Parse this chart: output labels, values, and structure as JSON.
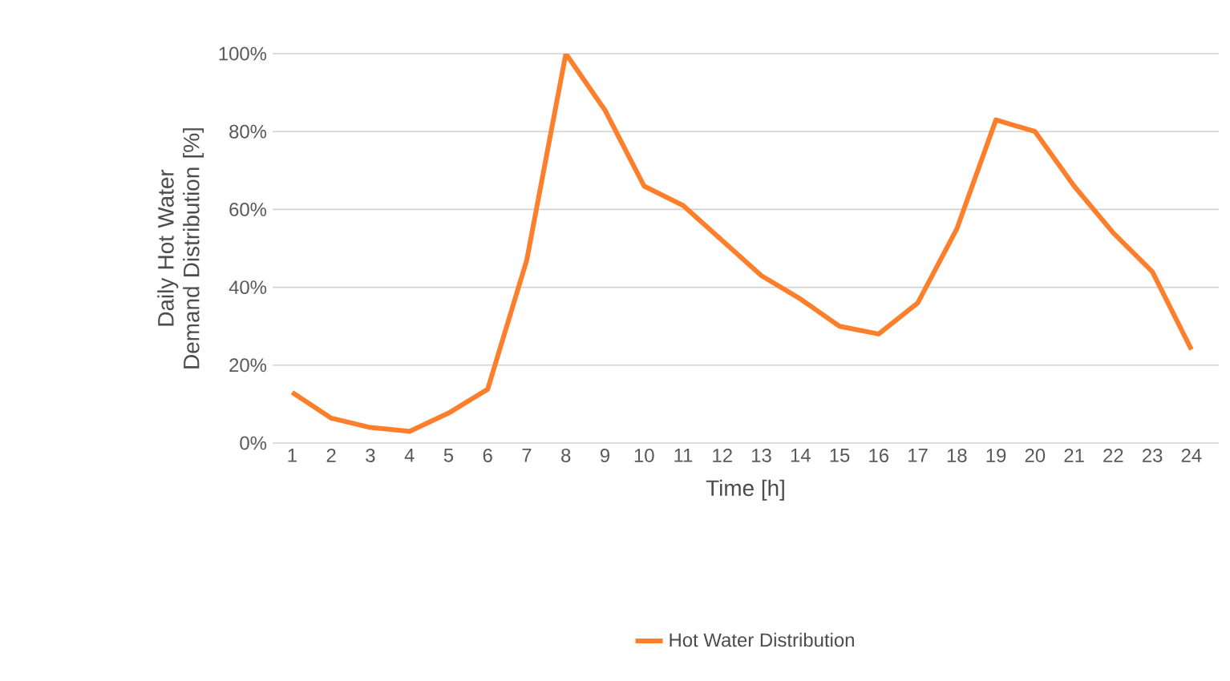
{
  "chart_data": {
    "type": "line",
    "xlabel": "Time [h]",
    "ylabel": "Daily Hot Water Demand Distribution [%]",
    "categories": [
      "1",
      "2",
      "3",
      "4",
      "5",
      "6",
      "7",
      "8",
      "9",
      "10",
      "11",
      "12",
      "13",
      "14",
      "15",
      "16",
      "17",
      "18",
      "19",
      "20",
      "21",
      "22",
      "23",
      "24"
    ],
    "series": [
      {
        "name": "Hot Water Distribution",
        "color": "#fd7f2b",
        "values": [
          13,
          6.4,
          4,
          3,
          7.7,
          13.8,
          47,
          100,
          85.5,
          66,
          61,
          52,
          43,
          37,
          30,
          28,
          36,
          55,
          83,
          80,
          66,
          54,
          44,
          24
        ]
      }
    ],
    "ylim": [
      0,
      100
    ],
    "yticks": [
      {
        "value": 0,
        "label": "0%"
      },
      {
        "value": 20,
        "label": "20%"
      },
      {
        "value": 40,
        "label": "40%"
      },
      {
        "value": 60,
        "label": "60%"
      },
      {
        "value": 80,
        "label": "80%"
      },
      {
        "value": 100,
        "label": "100%"
      }
    ],
    "grid": "y",
    "legend": "bottom",
    "marker": "none",
    "line_style": "solid"
  }
}
